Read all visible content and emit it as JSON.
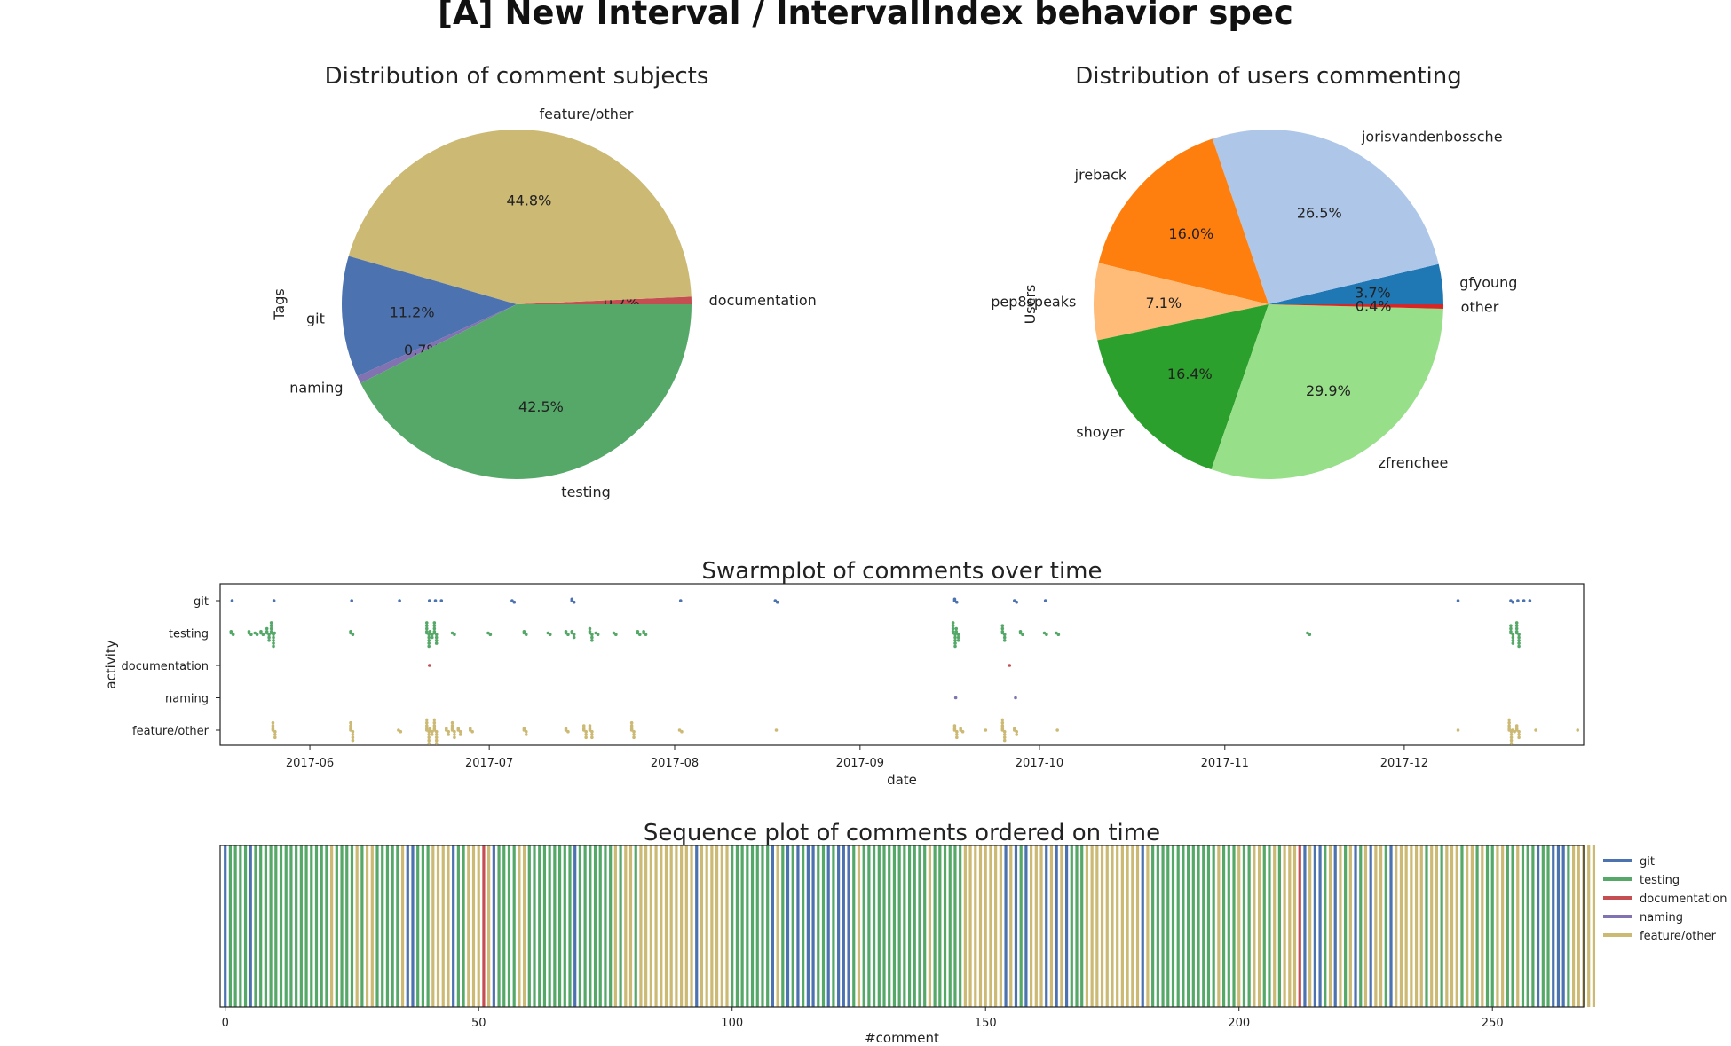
{
  "suptitle": "[A] New Interval / IntervalIndex behavior spec",
  "colors": {
    "git": "#4c72b0",
    "testing": "#55a868",
    "documentation": "#c44e52",
    "naming": "#8172b2",
    "feature/other": "#ccb974"
  },
  "chart_data": [
    {
      "type": "pie",
      "title": "Distribution of comment subjects",
      "ylabel": "Tags",
      "slices": [
        {
          "label": "documentation",
          "value": 0.7,
          "pct_label": "0.7%",
          "color": "#c44e52"
        },
        {
          "label": "feature/other",
          "value": 44.8,
          "pct_label": "44.8%",
          "color": "#ccb974"
        },
        {
          "label": "git",
          "value": 11.2,
          "pct_label": "11.2%",
          "color": "#4c72b0"
        },
        {
          "label": "naming",
          "value": 0.7,
          "pct_label": "0.7%",
          "color": "#8172b2"
        },
        {
          "label": "testing",
          "value": 42.5,
          "pct_label": "42.5%",
          "color": "#55a868"
        }
      ]
    },
    {
      "type": "pie",
      "title": "Distribution of users commenting",
      "ylabel": "Users",
      "slices": [
        {
          "label": "gfyoung",
          "value": 3.7,
          "pct_label": "3.7%",
          "color": "#1f77b4"
        },
        {
          "label": "jorisvandenbossche",
          "value": 26.5,
          "pct_label": "26.5%",
          "color": "#aec7e8"
        },
        {
          "label": "jreback",
          "value": 16.0,
          "pct_label": "16.0%",
          "color": "#ff7f0e"
        },
        {
          "label": "pep8speaks",
          "value": 7.1,
          "pct_label": "7.1%",
          "color": "#ffbb78"
        },
        {
          "label": "shoyer",
          "value": 16.4,
          "pct_label": "16.4%",
          "color": "#2ca02c"
        },
        {
          "label": "zfrenchee",
          "value": 29.9,
          "pct_label": "29.9%",
          "color": "#98df8a"
        },
        {
          "label": "other",
          "value": 0.4,
          "pct_label": "0.4%",
          "color": "#d62728"
        }
      ]
    },
    {
      "type": "scatter",
      "title": "Swarmplot of comments over time",
      "xlabel": "date",
      "ylabel": "activity",
      "categories": [
        "git",
        "testing",
        "documentation",
        "naming",
        "feature/other"
      ],
      "x_ticks": [
        "2017-06",
        "2017-07",
        "2017-08",
        "2017-09",
        "2017-10",
        "2017-11",
        "2017-12"
      ],
      "xlim": [
        "2017-05-17",
        "2017-12-31"
      ],
      "points": {
        "git": [
          [
            "2017-05-19",
            1
          ],
          [
            "2017-05-26",
            1
          ],
          [
            "2017-06-08",
            1
          ],
          [
            "2017-06-16",
            1
          ],
          [
            "2017-06-21",
            1
          ],
          [
            "2017-06-22",
            1
          ],
          [
            "2017-06-23",
            1
          ],
          [
            "2017-07-05",
            2
          ],
          [
            "2017-07-15",
            3
          ],
          [
            "2017-08-02",
            1
          ],
          [
            "2017-08-18",
            2
          ],
          [
            "2017-09-17",
            3
          ],
          [
            "2017-09-27",
            2
          ],
          [
            "2017-10-02",
            1
          ],
          [
            "2017-12-10",
            1
          ],
          [
            "2017-12-19",
            2
          ],
          [
            "2017-12-20",
            1
          ],
          [
            "2017-12-21",
            1
          ],
          [
            "2017-12-22",
            1
          ]
        ],
        "testing": [
          [
            "2017-05-19",
            3
          ],
          [
            "2017-05-22",
            3
          ],
          [
            "2017-05-23",
            2
          ],
          [
            "2017-05-24",
            3
          ],
          [
            "2017-05-25",
            6
          ],
          [
            "2017-05-26",
            11
          ],
          [
            "2017-06-08",
            3
          ],
          [
            "2017-06-21",
            14
          ],
          [
            "2017-06-22",
            9
          ],
          [
            "2017-06-25",
            2
          ],
          [
            "2017-07-01",
            2
          ],
          [
            "2017-07-07",
            3
          ],
          [
            "2017-07-11",
            2
          ],
          [
            "2017-07-14",
            3
          ],
          [
            "2017-07-15",
            4
          ],
          [
            "2017-07-18",
            6
          ],
          [
            "2017-07-19",
            2
          ],
          [
            "2017-07-22",
            2
          ],
          [
            "2017-07-26",
            3
          ],
          [
            "2017-07-27",
            3
          ],
          [
            "2017-09-17",
            16
          ],
          [
            "2017-09-25",
            7
          ],
          [
            "2017-09-28",
            3
          ],
          [
            "2017-10-02",
            2
          ],
          [
            "2017-10-04",
            2
          ],
          [
            "2017-11-15",
            2
          ],
          [
            "2017-12-19",
            8
          ],
          [
            "2017-12-20",
            10
          ]
        ],
        "documentation": [
          [
            "2017-06-21",
            1
          ],
          [
            "2017-09-26",
            1
          ]
        ],
        "naming": [
          [
            "2017-09-17",
            1
          ],
          [
            "2017-09-27",
            1
          ]
        ],
        "feature/other": [
          [
            "2017-05-26",
            7
          ],
          [
            "2017-06-08",
            8
          ],
          [
            "2017-06-16",
            2
          ],
          [
            "2017-06-21",
            14
          ],
          [
            "2017-06-22",
            10
          ],
          [
            "2017-06-24",
            4
          ],
          [
            "2017-06-25",
            7
          ],
          [
            "2017-06-26",
            4
          ],
          [
            "2017-06-28",
            3
          ],
          [
            "2017-07-07",
            4
          ],
          [
            "2017-07-14",
            3
          ],
          [
            "2017-07-17",
            6
          ],
          [
            "2017-07-18",
            6
          ],
          [
            "2017-07-25",
            7
          ],
          [
            "2017-08-02",
            2
          ],
          [
            "2017-08-18",
            1
          ],
          [
            "2017-09-17",
            6
          ],
          [
            "2017-09-18",
            3
          ],
          [
            "2017-09-22",
            1
          ],
          [
            "2017-09-25",
            9
          ],
          [
            "2017-09-27",
            4
          ],
          [
            "2017-10-04",
            1
          ],
          [
            "2017-12-10",
            1
          ],
          [
            "2017-12-19",
            12
          ],
          [
            "2017-12-20",
            6
          ],
          [
            "2017-12-23",
            1
          ],
          [
            "2017-12-30",
            1
          ]
        ]
      }
    },
    {
      "type": "bar",
      "title": "Sequence plot of comments ordered on time",
      "xlabel": "#comment",
      "x_ticks": [
        0,
        50,
        100,
        150,
        200,
        250
      ],
      "xlim": [
        -1,
        268
      ],
      "legend": [
        "git",
        "testing",
        "documentation",
        "naming",
        "feature/other"
      ],
      "legend_position": "right",
      "sequence": [
        "git",
        "testing",
        "testing",
        "testing",
        "testing",
        "git",
        "testing",
        "testing",
        "testing",
        "testing",
        "testing",
        "testing",
        "testing",
        "testing",
        "testing",
        "testing",
        "testing",
        "testing",
        "testing",
        "testing",
        "testing",
        "feature/other",
        "testing",
        "testing",
        "testing",
        "testing",
        "feature/other",
        "testing",
        "feature/other",
        "feature/other",
        "testing",
        "testing",
        "testing",
        "testing",
        "testing",
        "feature/other",
        "git",
        "git",
        "testing",
        "testing",
        "testing",
        "feature/other",
        "feature/other",
        "feature/other",
        "feature/other",
        "git",
        "testing",
        "testing",
        "feature/other",
        "feature/other",
        "feature/other",
        "documentation",
        "feature/other",
        "git",
        "testing",
        "testing",
        "testing",
        "testing",
        "feature/other",
        "feature/other",
        "testing",
        "testing",
        "testing",
        "testing",
        "testing",
        "testing",
        "testing",
        "testing",
        "testing",
        "git",
        "testing",
        "testing",
        "testing",
        "testing",
        "testing",
        "testing",
        "testing",
        "feature/other",
        "testing",
        "feature/other",
        "feature/other",
        "testing",
        "feature/other",
        "feature/other",
        "feature/other",
        "feature/other",
        "feature/other",
        "feature/other",
        "feature/other",
        "feature/other",
        "feature/other",
        "feature/other",
        "feature/other",
        "git",
        "feature/other",
        "feature/other",
        "feature/other",
        "feature/other",
        "feature/other",
        "feature/other",
        "testing",
        "testing",
        "testing",
        "testing",
        "testing",
        "testing",
        "testing",
        "testing",
        "git",
        "feature/other",
        "testing",
        "git",
        "testing",
        "git",
        "testing",
        "git",
        "git",
        "testing",
        "testing",
        "git",
        "testing",
        "git",
        "git",
        "git",
        "testing",
        "feature/other",
        "testing",
        "testing",
        "testing",
        "testing",
        "testing",
        "testing",
        "testing",
        "testing",
        "testing",
        "testing",
        "testing",
        "testing",
        "testing",
        "feature/other",
        "testing",
        "testing",
        "testing",
        "testing",
        "testing",
        "testing",
        "feature/other",
        "feature/other",
        "feature/other",
        "feature/other",
        "feature/other",
        "feature/other",
        "feature/other",
        "feature/other",
        "git",
        "feature/other",
        "git",
        "testing",
        "git",
        "feature/other",
        "feature/other",
        "feature/other",
        "git",
        "feature/other",
        "git",
        "feature/other",
        "git",
        "testing",
        "testing",
        "testing",
        "feature/other",
        "feature/other",
        "feature/other",
        "feature/other",
        "feature/other",
        "feature/other",
        "feature/other",
        "feature/other",
        "feature/other",
        "feature/other",
        "feature/other",
        "git",
        "feature/other",
        "testing",
        "testing",
        "testing",
        "testing",
        "testing",
        "testing",
        "testing",
        "testing",
        "testing",
        "testing",
        "testing",
        "testing",
        "testing",
        "feature/other",
        "testing",
        "testing",
        "testing",
        "feature/other",
        "testing",
        "testing",
        "feature/other",
        "feature/other",
        "testing",
        "testing",
        "feature/other",
        "testing",
        "feature/other",
        "feature/other",
        "feature/other",
        "documentation",
        "git",
        "feature/other",
        "git",
        "git",
        "testing",
        "feature/other",
        "git",
        "feature/other",
        "testing",
        "feature/other",
        "git",
        "testing",
        "feature/other",
        "git",
        "feature/other",
        "feature/other",
        "testing",
        "git",
        "feature/other",
        "feature/other",
        "feature/other",
        "feature/other",
        "feature/other",
        "feature/other",
        "testing",
        "feature/other",
        "feature/other",
        "testing",
        "feature/other",
        "feature/other",
        "feature/other",
        "testing",
        "feature/other",
        "feature/other",
        "testing",
        "feature/other",
        "testing",
        "testing",
        "feature/other",
        "feature/other",
        "testing",
        "testing",
        "feature/other",
        "testing",
        "testing",
        "testing",
        "git",
        "testing",
        "testing",
        "git",
        "git",
        "git",
        "testing",
        "feature/other",
        "feature/other",
        "feature/other",
        "feature/other",
        "feature/other"
      ]
    }
  ]
}
